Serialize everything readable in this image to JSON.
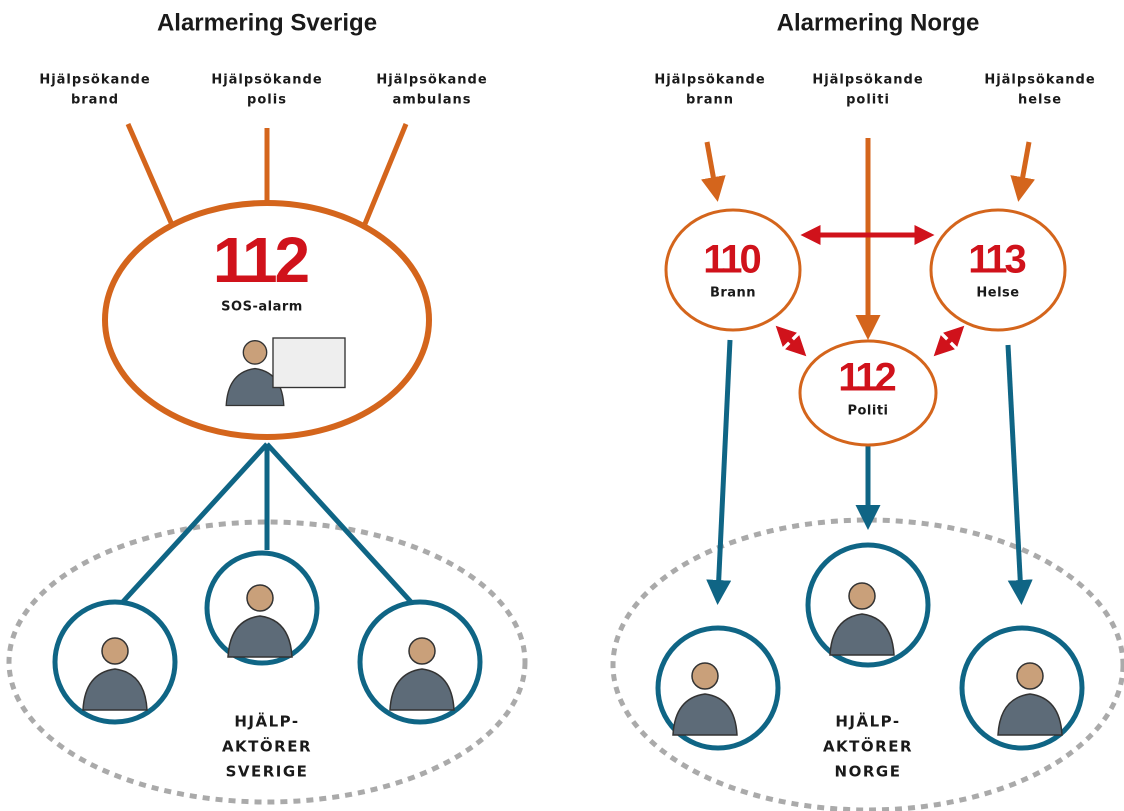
{
  "sweden": {
    "title": "Alarmering Sverige",
    "callers": [
      [
        "Hjälpsökande",
        "brand"
      ],
      [
        "Hjälpsökande",
        "polis"
      ],
      [
        "Hjälpsökande",
        "ambulans"
      ]
    ],
    "center": {
      "number": "112",
      "label": "SOS-alarm"
    },
    "helpers": [
      "HJÄLP-",
      "AKTÖRER",
      "SVERIGE"
    ]
  },
  "norway": {
    "title": "Alarmering Norge",
    "callers": [
      [
        "Hjälpsökande",
        "brann"
      ],
      [
        "Hjälpsökande",
        "politi"
      ],
      [
        "Hjälpsökande",
        "helse"
      ]
    ],
    "centers": [
      {
        "number": "110",
        "label": "Brann"
      },
      {
        "number": "113",
        "label": "Helse"
      },
      {
        "number": "112",
        "label": "Politi"
      }
    ],
    "helpers": [
      "HJÄLP-",
      "AKTÖRER",
      "NORGE"
    ]
  }
}
